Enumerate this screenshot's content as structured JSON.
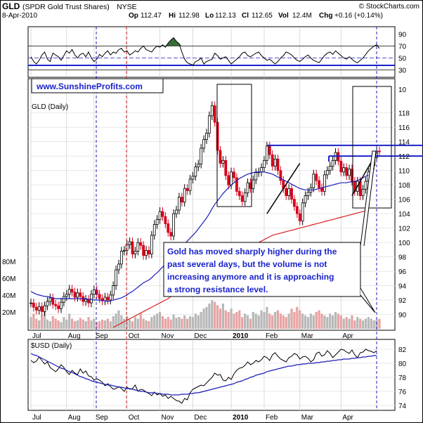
{
  "header": {
    "symbol": "GLD",
    "name": "(SPDR Gold Trust Shares)",
    "exchange": "NYSE",
    "copyright": "© StockCharts.com",
    "date": "8-Apr-2010",
    "quote": {
      "open_label": "Op",
      "open": "112.47",
      "high_label": "Hi",
      "high": "112.98",
      "low_label": "Lo",
      "low": "112.13",
      "close_label": "Cl",
      "close": "112.65",
      "vol_label": "Vol",
      "vol": "12.4M",
      "chg_label": "Chg",
      "chg": "+0.16 (+0.14%)"
    }
  },
  "website_label": "www.SunshineProfits.com",
  "annotation": {
    "lines": [
      "Gold has moved sharply higher during the",
      "past several days, but the volume is not",
      "increasing anymore and it is approaching",
      "a strong resistance level."
    ],
    "bg": "#ffffff",
    "color": "#1a23c9"
  },
  "colors": {
    "up": "#000000",
    "down": "#d8001a",
    "ma_short": "#1c1cb8",
    "ma_long": "#d82020",
    "annotation_blue": "#1a23c9",
    "rsi_fill": "#3a6b3a",
    "vol_up": "#b8b8b8",
    "vol_down": "#e8a3a3"
  },
  "months": [
    "Jul",
    "Aug",
    "Sep",
    "Oct",
    "Nov",
    "Dec",
    "2010",
    "Feb",
    "Mar",
    "Apr"
  ],
  "chart_data": [
    {
      "type": "line",
      "panel": "RSI",
      "y_ticks": [
        30,
        50,
        70,
        90
      ],
      "ylim": [
        20,
        100
      ],
      "reference_lines": [
        30,
        70
      ],
      "series": [
        {
          "values": [
            52,
            44,
            40,
            46,
            55,
            60,
            48,
            44,
            58,
            55,
            52,
            46,
            54,
            62,
            58,
            64,
            55,
            50,
            56,
            58,
            52,
            60,
            50,
            44,
            48,
            56,
            52,
            58,
            62,
            55,
            60,
            58,
            64,
            66,
            60,
            62,
            55,
            58,
            62,
            60,
            66,
            70,
            64,
            62,
            60,
            66,
            70,
            68,
            72,
            68,
            75,
            80,
            84,
            78,
            74,
            60,
            48,
            42,
            40,
            38,
            44,
            46,
            50,
            40,
            44,
            46,
            48,
            58,
            54,
            48,
            50,
            52,
            46,
            40,
            44,
            48,
            52,
            58,
            60,
            54,
            52,
            55,
            58,
            60,
            54,
            50,
            46,
            48,
            44,
            40,
            44,
            50,
            54,
            60,
            58,
            55,
            50,
            46,
            44,
            48,
            52,
            55,
            50,
            46,
            44,
            42,
            48,
            54,
            58,
            60,
            56,
            62,
            58,
            54,
            50,
            48,
            52,
            48,
            44,
            42,
            46,
            50,
            56,
            62,
            66,
            70,
            72,
            66
          ]
        }
      ]
    },
    {
      "type": "candlestick",
      "panel": "GLD (Daily)",
      "title": "GLD (Daily)",
      "y_ticks": [
        90,
        92,
        94,
        96,
        98,
        100,
        102,
        104,
        106,
        108,
        110,
        112,
        114,
        116,
        118
      ],
      "extra_tick": "10",
      "ylim": [
        88,
        121
      ],
      "x_labels": [
        "Jul",
        "Aug",
        "Sep",
        "Oct",
        "Nov",
        "Dec",
        "2010",
        "Feb",
        "Mar",
        "Apr"
      ],
      "close": [
        91.6,
        91.0,
        90.6,
        91.1,
        90.4,
        91.2,
        91.8,
        92.3,
        91.4,
        91.2,
        90.8,
        91.7,
        92.5,
        92.8,
        93.5,
        93.1,
        92.4,
        93.0,
        92.5,
        91.8,
        92.1,
        91.6,
        92.8,
        93.4,
        92.8,
        92.2,
        91.9,
        92.4,
        92.0,
        92.7,
        94.0,
        96.2,
        97.0,
        98.8,
        98.9,
        99.7,
        100.1,
        98.4,
        98.8,
        100.0,
        99.6,
        98.2,
        98.9,
        98.4,
        101.0,
        102.5,
        103.2,
        104.3,
        103.6,
        102.6,
        101.4,
        100.9,
        104.0,
        104.5,
        106.3,
        105.6,
        107.5,
        107.2,
        108.8,
        109.2,
        110.5,
        110.9,
        113.1,
        114.3,
        115.2,
        117.6,
        119.0,
        116.7,
        112.8,
        111.0,
        111.4,
        109.3,
        108.0,
        109.8,
        109.0,
        107.1,
        106.5,
        105.7,
        106.9,
        108.3,
        107.5,
        108.7,
        109.7,
        109.8,
        110.4,
        111.4,
        113.4,
        112.2,
        110.6,
        111.6,
        110.0,
        108.6,
        107.5,
        106.5,
        107.5,
        106.0,
        105.0,
        104.0,
        103.0,
        105.5,
        106.5,
        107.0,
        107.6,
        109.5,
        108.6,
        107.6,
        107.1,
        109.4,
        110.0,
        110.6,
        111.4,
        112.5,
        111.3,
        109.8,
        110.4,
        109.3,
        110.2,
        108.5,
        107.1,
        108.5,
        106.5,
        107.4,
        108.5,
        109.8,
        110.7,
        111.8,
        112.7,
        112.6
      ],
      "ma_short_values": [
        93.2,
        93.0,
        92.8,
        92.7,
        92.6,
        92.5,
        92.5,
        92.4,
        92.3,
        92.2,
        92.2,
        92.2,
        92.2,
        92.2,
        92.2,
        92.2,
        92.2,
        92.2,
        92.2,
        92.2,
        92.2,
        92.1,
        92.1,
        92.0,
        92.0,
        92.0,
        91.9,
        91.9,
        91.8,
        91.9,
        92.0,
        92.1,
        92.2,
        92.3,
        92.5,
        92.7,
        93.0,
        93.2,
        93.5,
        93.8,
        94.1,
        94.4,
        94.6,
        94.8,
        95.1,
        95.5,
        95.8,
        96.2,
        96.6,
        97.0,
        97.4,
        97.8,
        98.2,
        98.6,
        99.0,
        99.4,
        99.8,
        100.2,
        100.6,
        101.0,
        101.4,
        101.9,
        102.4,
        102.9,
        103.4,
        104.0,
        104.7,
        105.3,
        105.8,
        106.3,
        106.8,
        107.2,
        107.6,
        108.0,
        108.3,
        108.6,
        108.9,
        109.1,
        109.3,
        109.5,
        109.6,
        109.7,
        109.8,
        109.8,
        109.8,
        109.8,
        109.7,
        109.6,
        109.5,
        109.3,
        109.1,
        108.9,
        108.7,
        108.5,
        108.3,
        108.1,
        107.9,
        107.7,
        107.5,
        107.4,
        107.3,
        107.3,
        107.3,
        107.3,
        107.4,
        107.5,
        107.6,
        107.7,
        107.8,
        107.9,
        108.0,
        108.1,
        108.2,
        108.3,
        108.3,
        108.3,
        108.4,
        108.4,
        108.5,
        108.6,
        108.8,
        109.0,
        109.2,
        109.4
      ],
      "ma_long_values": [
        null,
        null,
        null,
        null,
        null,
        null,
        null,
        null,
        null,
        null,
        null,
        null,
        null,
        null,
        null,
        null,
        null,
        null,
        null,
        null,
        null,
        null,
        null,
        null,
        null,
        null,
        null,
        null,
        null,
        null,
        88.2,
        88.4,
        88.6,
        88.8,
        89.0,
        89.2,
        89.4,
        89.6,
        89.8,
        90.0,
        90.2,
        90.4,
        90.6,
        90.8,
        91.0,
        91.2,
        91.4,
        91.6,
        91.8,
        92.0,
        92.2,
        92.5,
        92.8,
        93.0,
        93.2,
        93.4,
        93.6,
        93.8,
        94.0,
        94.2,
        94.4,
        94.6,
        94.8,
        95.0,
        95.3,
        95.6,
        95.9,
        96.2,
        96.5,
        96.8,
        97.0,
        97.3,
        97.6,
        97.9,
        98.2,
        98.4,
        98.6,
        98.8,
        99.0,
        99.2,
        99.4,
        99.6,
        99.8,
        100.0,
        100.2,
        100.4,
        100.6,
        100.8,
        101.0,
        101.1,
        101.2,
        101.3,
        101.4,
        101.5,
        101.6,
        101.7,
        101.8,
        101.9,
        102.0,
        102.1,
        102.2,
        102.3,
        102.4,
        102.5,
        102.6,
        102.7,
        102.8,
        102.9,
        103.0,
        103.1,
        103.2,
        103.3,
        103.4,
        103.5,
        103.6,
        103.7,
        103.8,
        103.9,
        104.0,
        104.1,
        104.2,
        104.3,
        104.4,
        104.5
      ],
      "resistance_levels": [
        113.5,
        112.0
      ],
      "volume_ticks": [
        "20M",
        "40M",
        "60M",
        "80M"
      ],
      "volume_values": [
        14,
        18,
        12,
        10,
        16,
        22,
        11,
        9,
        15,
        12,
        10,
        8,
        14,
        11,
        18,
        12,
        9,
        10,
        13,
        11,
        9,
        14,
        10,
        12,
        8,
        9,
        11,
        10,
        12,
        9,
        15,
        18,
        22,
        16,
        12,
        15,
        11,
        9,
        14,
        12,
        18,
        12,
        10,
        9,
        14,
        16,
        18,
        20,
        15,
        12,
        14,
        11,
        17,
        13,
        14,
        12,
        16,
        12,
        15,
        14,
        18,
        16,
        20,
        24,
        26,
        30,
        34,
        32,
        28,
        24,
        30,
        22,
        20,
        24,
        18,
        20,
        22,
        14,
        18,
        16,
        12,
        20,
        18,
        16,
        22,
        20,
        26,
        18,
        16,
        20,
        22,
        18,
        16,
        14,
        18,
        24,
        20,
        26,
        22,
        18,
        16,
        14,
        18,
        16,
        20,
        22,
        18,
        16,
        14,
        18,
        16,
        20,
        18,
        16,
        12,
        14,
        12,
        16,
        10,
        14,
        12,
        10,
        12,
        14,
        12,
        10,
        11,
        12
      ]
    },
    {
      "type": "line",
      "panel": "$USD (Daily)",
      "title": "$USD (Daily)",
      "y_ticks": [
        74,
        76,
        78,
        80,
        82
      ],
      "ylim": [
        73.5,
        83
      ],
      "x_labels": [
        "Jul",
        "Aug",
        "Sep",
        "Oct",
        "Nov",
        "Dec",
        "2010",
        "Feb",
        "Mar",
        "Apr"
      ],
      "series": [
        {
          "values": [
            80.4,
            80.1,
            80.3,
            80.9,
            80.4,
            79.9,
            80.2,
            79.4,
            79.1,
            78.8,
            79.2,
            79.8,
            79.4,
            78.8,
            78.4,
            79.0,
            78.6,
            78.4,
            79.2,
            78.6,
            78.9,
            78.2,
            78.1,
            77.6,
            77.8,
            77.6,
            77.3,
            76.8,
            77.1,
            76.7,
            76.3,
            76.4,
            76.7,
            76.4,
            76.0,
            76.6,
            76.3,
            76.4,
            76.9,
            76.0,
            76.3,
            76.2,
            75.9,
            75.7,
            75.4,
            75.9,
            75.5,
            75.7,
            75.3,
            75.5,
            75.0,
            75.3,
            75.0,
            74.7,
            74.6,
            74.3,
            75.0,
            74.8,
            75.8,
            76.3,
            76.5,
            76.7,
            76.9,
            76.8,
            77.2,
            77.6,
            78.0,
            78.6,
            78.3,
            78.4,
            77.6,
            77.5,
            78.0,
            77.7,
            78.5,
            79.0,
            79.3,
            79.4,
            79.7,
            80.2,
            79.8,
            80.0,
            80.4,
            80.2,
            80.5,
            81.0,
            80.8,
            80.4,
            81.2,
            81.5,
            81.0,
            80.6,
            80.4,
            80.2,
            80.8,
            81.0,
            81.4,
            81.2,
            80.6,
            80.9,
            81.0,
            80.7,
            80.2,
            80.5,
            81.4,
            81.6,
            81.0,
            81.2,
            81.8,
            81.4,
            80.8,
            81.2,
            81.6,
            82.0,
            81.9,
            81.6,
            81.4,
            81.9,
            81.2,
            80.8,
            81.5,
            81.6,
            82.0,
            81.8,
            81.7,
            81.5,
            81.8
          ]
        },
        {
          "values": [
            81.4,
            81.2,
            81.1,
            80.9,
            80.7,
            80.5,
            80.3,
            80.1,
            79.9,
            79.7,
            79.5,
            79.3,
            79.2,
            79.0,
            78.8,
            78.7,
            78.5,
            78.3,
            78.1,
            78.0,
            77.8,
            77.7,
            77.5,
            77.4,
            77.3,
            77.2,
            77.1,
            77.0,
            76.9,
            76.9,
            76.8,
            76.7,
            76.6,
            76.6,
            76.5,
            76.4,
            76.4,
            76.3,
            76.2,
            76.1,
            76.0,
            76.0,
            75.9,
            75.8,
            75.8,
            75.8,
            75.7,
            75.7,
            75.6,
            75.6,
            75.6,
            75.5,
            75.5,
            75.5,
            75.5,
            75.6,
            75.6,
            75.6,
            75.7,
            75.7,
            75.8,
            75.8,
            75.9,
            76.0,
            76.1,
            76.2,
            76.3,
            76.4,
            76.5,
            76.6,
            76.7,
            76.8,
            76.9,
            77.0,
            77.1,
            77.3,
            77.4,
            77.5,
            77.7,
            77.8,
            78.0,
            78.1,
            78.3,
            78.4,
            78.5,
            78.6,
            78.8,
            78.9,
            79.0,
            79.1,
            79.2,
            79.3,
            79.4,
            79.5,
            79.6,
            79.6,
            79.7,
            79.8,
            79.8,
            79.9,
            79.9,
            80.0,
            80.0,
            80.0,
            80.1,
            80.1,
            80.2,
            80.2,
            80.3,
            80.3,
            80.4,
            80.4,
            80.5,
            80.5,
            80.6,
            80.6,
            80.6,
            80.7,
            80.7,
            80.8,
            80.8,
            80.9,
            80.9,
            81.0,
            81.0,
            81.1,
            81.1
          ]
        }
      ]
    }
  ]
}
